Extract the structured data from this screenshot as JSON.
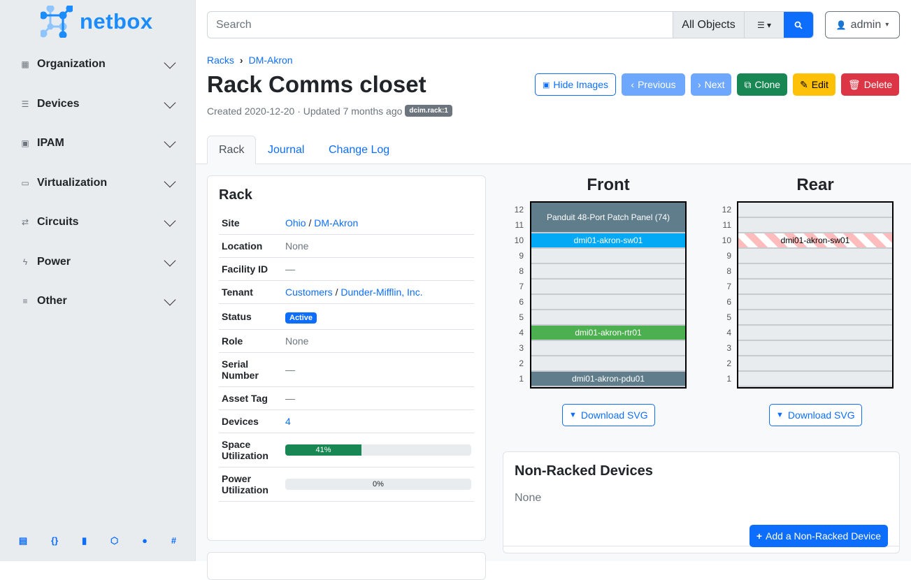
{
  "brand": "netbox",
  "sidebar": {
    "items": [
      {
        "label": "Organization",
        "icon": "building-icon"
      },
      {
        "label": "Devices",
        "icon": "server-icon"
      },
      {
        "label": "IPAM",
        "icon": "ip-icon"
      },
      {
        "label": "Virtualization",
        "icon": "monitor-icon"
      },
      {
        "label": "Circuits",
        "icon": "transit-icon"
      },
      {
        "label": "Power",
        "icon": "flash-icon"
      },
      {
        "label": "Other",
        "icon": "notes-icon"
      }
    ],
    "footer_icons": [
      "book-icon",
      "api-icon",
      "bookmark-icon",
      "graphql-icon",
      "github-icon",
      "slack-icon"
    ]
  },
  "search": {
    "placeholder": "Search",
    "scope": "All Objects"
  },
  "user": {
    "label": "admin"
  },
  "breadcrumb": [
    "Racks",
    "DM-Akron"
  ],
  "title": "Rack Comms closet",
  "meta": {
    "text": "Created 2020-12-20 · Updated 7 months ago",
    "badge": "dcim.rack:1"
  },
  "buttons": {
    "hide_images": "Hide Images",
    "previous": "Previous",
    "next": "Next",
    "clone": "Clone",
    "edit": "Edit",
    "delete": "Delete"
  },
  "tabs": [
    "Rack",
    "Journal",
    "Change Log"
  ],
  "rack_card": {
    "title": "Rack",
    "rows": {
      "site_label": "Site",
      "site_region": "Ohio",
      "site": "DM-Akron",
      "location_label": "Location",
      "location": "None",
      "facility_label": "Facility ID",
      "facility": "—",
      "tenant_label": "Tenant",
      "tenant_group": "Customers",
      "tenant": "Dunder-Mifflin, Inc.",
      "status_label": "Status",
      "status": "Active",
      "role_label": "Role",
      "role": "None",
      "serial_label": "Serial Number",
      "serial": "—",
      "asset_label": "Asset Tag",
      "asset": "—",
      "devices_label": "Devices",
      "devices": "4",
      "space_label": "Space Utilization",
      "space": "41%",
      "space_pct": 41,
      "power_label": "Power Utilization",
      "power": "0%",
      "power_pct": 0
    }
  },
  "elevations": {
    "front_title": "Front",
    "rear_title": "Rear",
    "download": "Download SVG",
    "units": [
      12,
      11,
      10,
      9,
      8,
      7,
      6,
      5,
      4,
      3,
      2,
      1
    ],
    "front_devices": [
      {
        "name": "Panduit 48-Port Patch Panel (74)",
        "top": 12,
        "height": 2,
        "color": "#607d8b"
      },
      {
        "name": "dmi01-akron-sw01",
        "top": 10,
        "height": 1,
        "color": "#03a9f4"
      },
      {
        "name": "dmi01-akron-rtr01",
        "top": 4,
        "height": 1,
        "color": "#4caf50"
      },
      {
        "name": "dmi01-akron-pdu01",
        "top": 1,
        "height": 1,
        "color": "#607d8b"
      }
    ],
    "rear_devices": [
      {
        "name": "dmi01-akron-sw01",
        "top": 10,
        "height": 1
      }
    ]
  },
  "non_racked": {
    "title": "Non-Racked Devices",
    "value": "None",
    "add": "Add a Non-Racked Device"
  }
}
